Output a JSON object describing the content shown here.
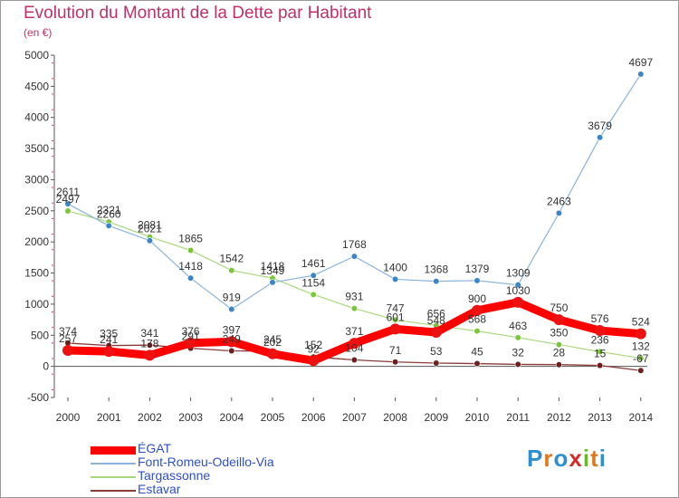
{
  "title": "Evolution du Montant de la Dette par Habitant",
  "subtitle": "(en €)",
  "logo": {
    "text": "Proxiti",
    "letters": [
      "P",
      "r",
      "o",
      "x",
      "i",
      "t",
      "i"
    ],
    "colors": [
      "#2e8fd0",
      "#e0781c",
      "#2e8fd0",
      "#d82a2a",
      "#6ab82c",
      "#e0781c",
      "#2e8fd0"
    ]
  },
  "chart_data": {
    "type": "line",
    "title": "Evolution du Montant de la Dette par Habitant",
    "ylabel": "(en €)",
    "xlabel": "",
    "categories": [
      "2000",
      "2001",
      "2002",
      "2003",
      "2004",
      "2005",
      "2006",
      "2007",
      "2008",
      "2009",
      "2010",
      "2011",
      "2012",
      "2013",
      "2014"
    ],
    "ylim": [
      -500,
      5000
    ],
    "yticks": [
      -500,
      0,
      500,
      1000,
      1500,
      2000,
      2500,
      3000,
      3500,
      4000,
      4500,
      5000
    ],
    "grid": false,
    "legend_position": "bottom-left",
    "series": [
      {
        "name": "ÉGAT",
        "color": "#ff0000",
        "marker": "#ee1111",
        "values": [
          257,
          241,
          178,
          376,
          397,
          202,
          92,
          371,
          601,
          548,
          900,
          1030,
          750,
          576,
          524
        ],
        "labels": [
          "257",
          "241",
          "178",
          "376",
          "397",
          "202",
          "92",
          "371",
          "601",
          "548",
          "900",
          "1030",
          "750",
          "576",
          "524"
        ]
      },
      {
        "name": "Font-Romeu-Odeillo-Via",
        "color": "#8ab4dc",
        "marker": "#3a86c8",
        "values": [
          2611,
          2260,
          2021,
          1418,
          919,
          1349,
          1461,
          1768,
          1400,
          1368,
          1379,
          1309,
          2463,
          3679,
          4697
        ],
        "labels": [
          "2611",
          "2260",
          "2021",
          "1418",
          "919",
          "1349",
          "1461",
          "1768",
          "1400",
          "1368",
          "1379",
          "1309",
          "2463",
          "3679",
          "4697"
        ]
      },
      {
        "name": "Targassonne",
        "color": "#a8d87a",
        "marker": "#7cc63c",
        "values": [
          2497,
          2321,
          2081,
          1865,
          1542,
          1418,
          1154,
          931,
          747,
          656,
          568,
          463,
          350,
          236,
          132
        ],
        "labels": [
          "2497",
          "2321",
          "2081",
          "1865",
          "1542",
          "1418",
          "1154",
          "931",
          "747",
          "656",
          "568",
          "463",
          "350",
          "236",
          "132"
        ]
      },
      {
        "name": "Estavar",
        "color": "#8b3a3a",
        "marker": "#6e1e1e",
        "values": [
          374,
          335,
          341,
          291,
          249,
          245,
          152,
          104,
          71,
          53,
          45,
          32,
          28,
          15,
          -67
        ],
        "labels": [
          "374",
          "335",
          "341",
          "291",
          "249",
          "245",
          "152",
          "104",
          "71",
          "53",
          "45",
          "32",
          "28",
          "15",
          "-67"
        ]
      }
    ]
  }
}
